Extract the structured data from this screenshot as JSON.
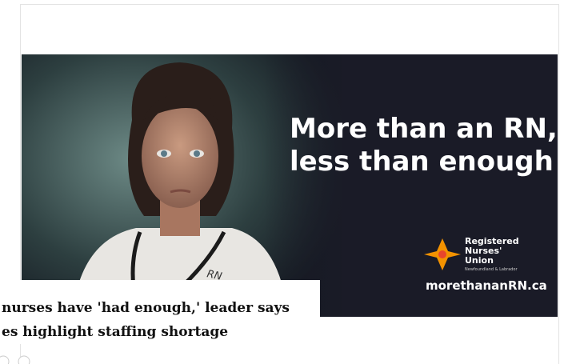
{
  "ad": {
    "headline": [
      "More than an RN,",
      "less than enough"
    ],
    "logo": {
      "name": [
        "Registered",
        "Nurses'",
        "Union"
      ],
      "region": "Newfoundland & Labrador"
    },
    "url": "morethananRN.ca",
    "badge": "RN"
  },
  "article": {
    "title": [
      "nurses have 'had enough,' leader says",
      "es highlight staffing shortage"
    ]
  }
}
